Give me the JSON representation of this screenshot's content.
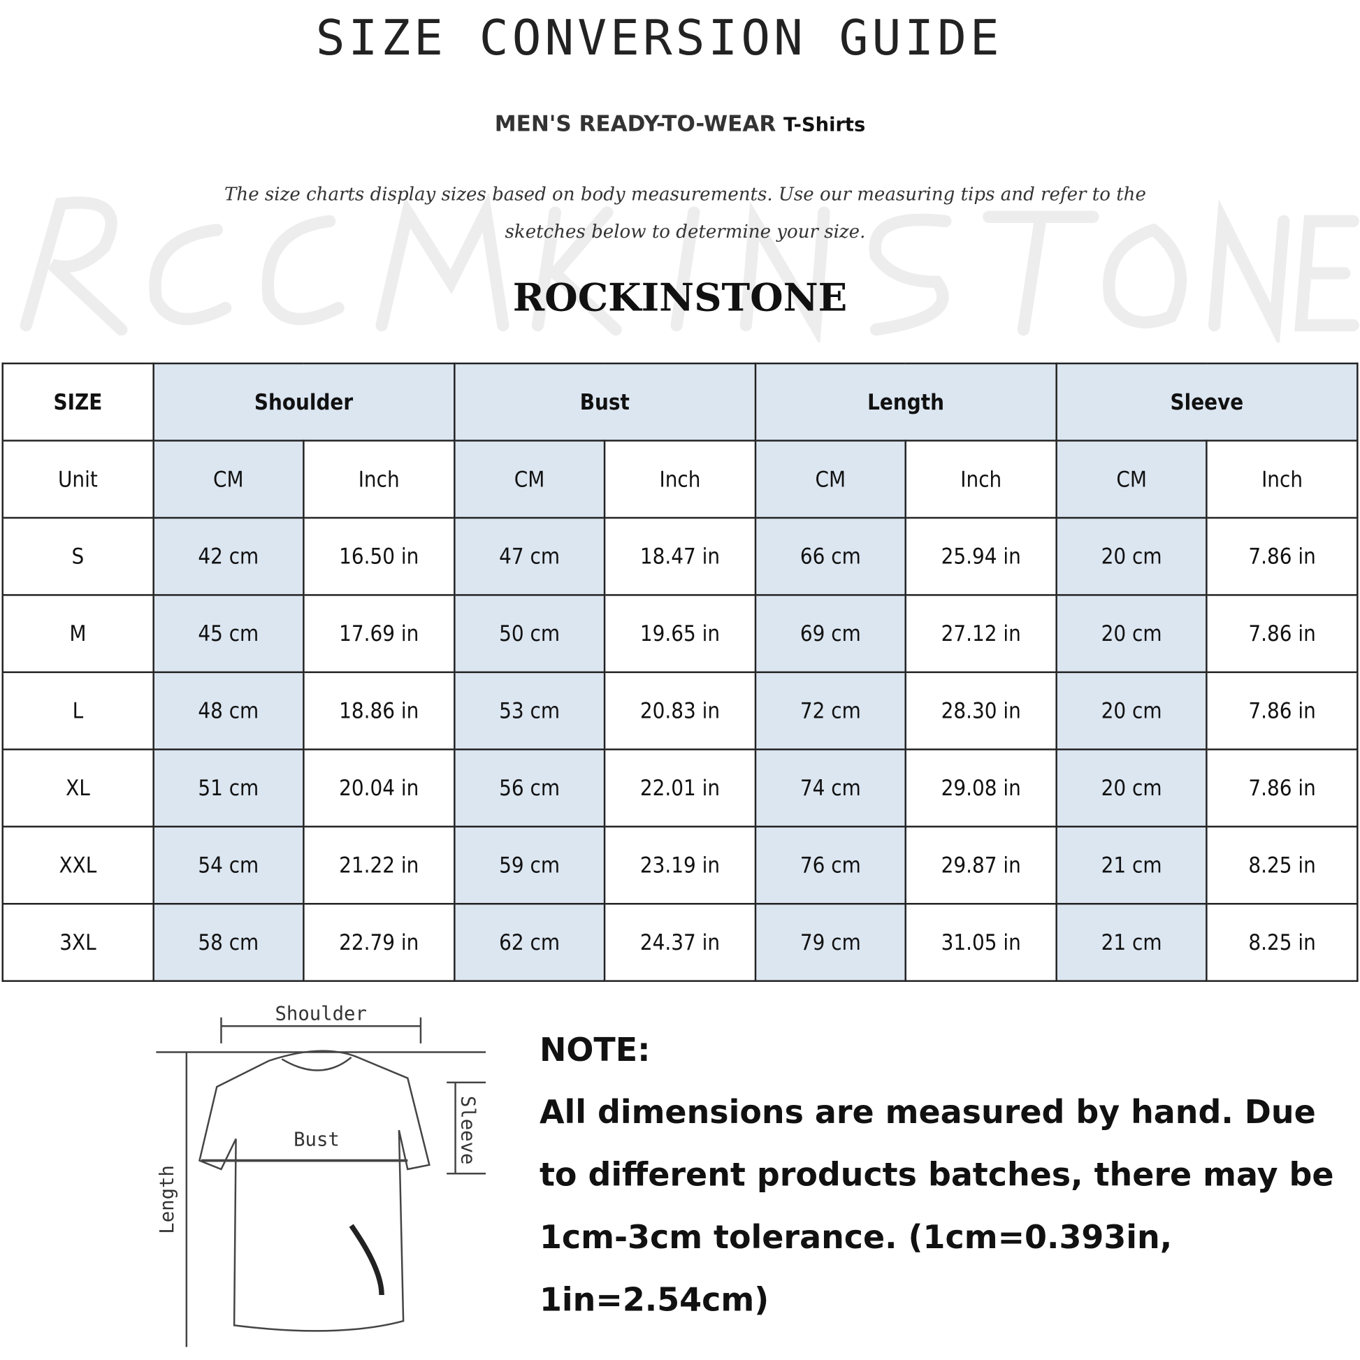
{
  "title": "SIZE CONVERSION GUIDE",
  "subtitle": {
    "main": "MEN'S READY-TO-WEAR",
    "product": "T-Shirts"
  },
  "description": "The size charts display sizes based on body measurements. Use our measuring tips and refer to the sketches below to determine your size.",
  "watermark": "ROCKINSTONE",
  "brand": "ROCKINSTONE",
  "table": {
    "headers": [
      "SIZE",
      "Shoulder",
      "Bust",
      "Length",
      "Sleeve"
    ],
    "units": [
      "Unit",
      "CM",
      "Inch",
      "CM",
      "Inch",
      "CM",
      "Inch",
      "CM",
      "Inch"
    ],
    "rows": [
      [
        "S",
        "42 cm",
        "16.50 in",
        "47 cm",
        "18.47  in",
        "66 cm",
        "25.94  in",
        "20 cm",
        "7.86  in"
      ],
      [
        "M",
        "45 cm",
        "17.69  in",
        "50 cm",
        "19.65  in",
        "69 cm",
        "27.12  in",
        "20 cm",
        "7.86  in"
      ],
      [
        "L",
        "48 cm",
        "18.86  in",
        "53 cm",
        "20.83  in",
        "72 cm",
        "28.30  in",
        "20 cm",
        "7.86  in"
      ],
      [
        "XL",
        "51 cm",
        "20.04  in",
        "56 cm",
        "22.01  in",
        "74 cm",
        "29.08  in",
        "20 cm",
        "7.86  in"
      ],
      [
        "XXL",
        "54 cm",
        "21.22  in",
        "59 cm",
        "23.19  in",
        "76 cm",
        "29.87  in",
        "21 cm",
        "8.25  in"
      ],
      [
        "3XL",
        "58 cm",
        "22.79  in",
        "62 cm",
        "24.37  in",
        "79 cm",
        "31.05  in",
        "21 cm",
        "8.25  in"
      ]
    ]
  },
  "sketch": {
    "shoulder": "Shoulder",
    "bust": "Bust",
    "length": "Length",
    "sleeve": "Sleeve"
  },
  "note": {
    "heading": "NOTE:",
    "text": "All dimensions are measured by hand. Due to different products batches, there may be 1cm-3cm tolerance. (1cm=0.393in, 1in=2.54cm)"
  },
  "colors": {
    "header_fill": "#dce6f1",
    "border": "#222222"
  }
}
